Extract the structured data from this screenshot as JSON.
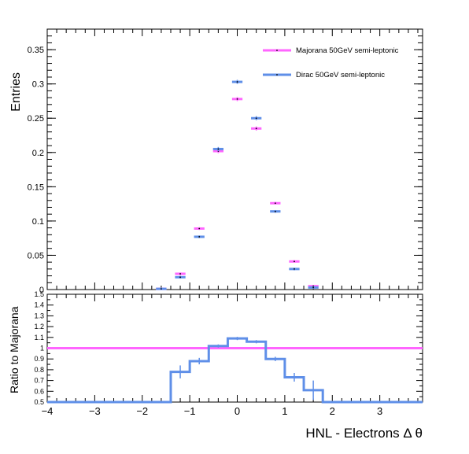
{
  "chart_data": [
    {
      "type": "scatter",
      "ylabel": "Entries",
      "ylim": [
        0,
        0.38
      ],
      "yticks": [
        0,
        0.05,
        0.1,
        0.15,
        0.2,
        0.25,
        0.3,
        0.35
      ],
      "ytick_labels": [
        "0",
        "0.05",
        "0.1",
        "0.15",
        "0.2",
        "0.25",
        "0.3",
        "0.35"
      ],
      "xlim": [
        -4,
        3.9
      ],
      "bin_width": 0.4,
      "legend_position": "top-right",
      "series": [
        {
          "name": "Majorana 50GeV semi-leptonic",
          "color": "#ff66ff",
          "x": [
            -1.6,
            -1.2,
            -0.8,
            -0.4,
            0.0,
            0.4,
            0.8,
            1.2,
            1.6
          ],
          "y": [
            0.001,
            0.023,
            0.089,
            0.202,
            0.278,
            0.235,
            0.126,
            0.041,
            0.005
          ],
          "yerr": [
            0.0005,
            0.002,
            0.002,
            0.003,
            0.003,
            0.003,
            0.002,
            0.002,
            0.001
          ]
        },
        {
          "name": "Dirac 50GeV semi-leptonic",
          "color": "#5f8fe8",
          "x": [
            -1.6,
            -1.2,
            -0.8,
            -0.4,
            0.0,
            0.4,
            0.8,
            1.2,
            1.6
          ],
          "y": [
            0.001,
            0.018,
            0.077,
            0.205,
            0.303,
            0.25,
            0.114,
            0.03,
            0.003
          ],
          "yerr": [
            0.0005,
            0.002,
            0.002,
            0.003,
            0.003,
            0.003,
            0.002,
            0.002,
            0.001
          ]
        }
      ]
    },
    {
      "type": "line",
      "ylabel": "Ratio to Majorana",
      "xlabel": "HNL - Electrons  Δ θ",
      "ylim": [
        0.5,
        1.5
      ],
      "yticks": [
        0.5,
        0.6,
        0.7,
        0.8,
        0.9,
        1,
        1.1,
        1.2,
        1.3,
        1.4,
        1.5
      ],
      "ytick_labels": [
        "0.5",
        "0.6",
        "0.7",
        "0.8",
        "0.9",
        "1",
        "1.1",
        "1.2",
        "1.3",
        "1.4",
        "1.5"
      ],
      "xlim": [
        -4,
        3.9
      ],
      "xticks": [
        -4,
        -3,
        -2,
        -1,
        0,
        1,
        2,
        3
      ],
      "xtick_labels": [
        "−4",
        "−3",
        "−2",
        "−1",
        "0",
        "1",
        "2",
        "3"
      ],
      "reference": {
        "y": 1.0,
        "color": "#ff66ff"
      },
      "series": [
        {
          "name": "Dirac 50GeV semi-leptonic",
          "color": "#5f8fe8",
          "x": [
            -1.2,
            -0.8,
            -0.4,
            0.0,
            0.4,
            0.8,
            1.2,
            1.6
          ],
          "y": [
            0.78,
            0.88,
            1.02,
            1.09,
            1.06,
            0.9,
            0.73,
            0.61
          ],
          "yerr": [
            0.06,
            0.03,
            0.015,
            0.015,
            0.015,
            0.02,
            0.04,
            0.09
          ],
          "baseline_outside": 0.5
        }
      ]
    }
  ]
}
